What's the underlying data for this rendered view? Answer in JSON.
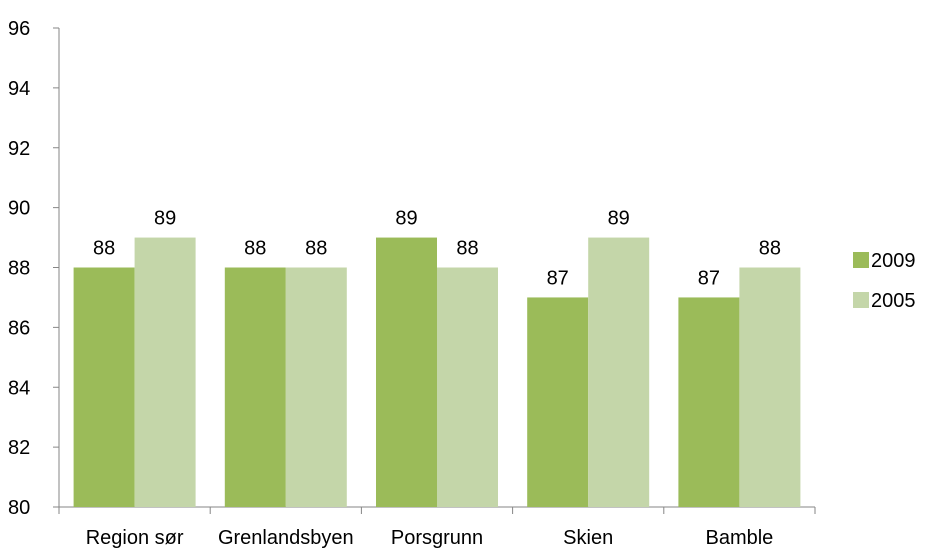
{
  "chart_data": {
    "type": "bar",
    "categories": [
      "Region sør",
      "Grenlandsbyen",
      "Porsgrunn",
      "Skien",
      "Bamble"
    ],
    "series": [
      {
        "name": "2009",
        "values": [
          88,
          88,
          89,
          87,
          87
        ],
        "color": "#9bbb59"
      },
      {
        "name": "2005",
        "values": [
          89,
          88,
          88,
          89,
          88
        ],
        "color": "#c4d6a9"
      }
    ],
    "ylim": [
      80,
      96
    ],
    "yticks": [
      80,
      82,
      84,
      86,
      88,
      90,
      92,
      94,
      96
    ],
    "grid": false,
    "legend_position": "right"
  }
}
